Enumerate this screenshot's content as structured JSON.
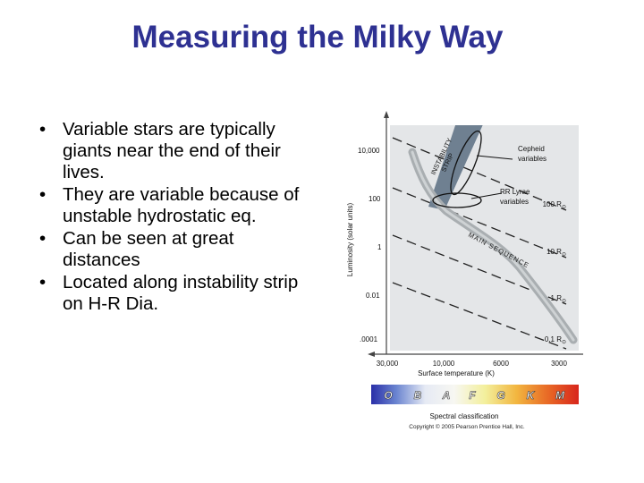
{
  "slide": {
    "title": "Measuring the Milky Way",
    "bullets": [
      "Variable stars are typically giants near the end of their lives.",
      "They are variable because of unstable hydrostatic eq.",
      "Can be seen at great distances",
      "Located along instability strip on H-R Dia."
    ]
  },
  "figure": {
    "y_axis_label": "Luminosity (solar units)",
    "x_axis_label": "Surface temperature (K)",
    "y_ticks": [
      "10,000",
      "100",
      "1",
      "0.01",
      ".0001"
    ],
    "x_ticks": [
      "30,000",
      "10,000",
      "6000",
      "3000"
    ],
    "radius_labels": [
      "100 R",
      "10 R",
      "1 R",
      "0.1 R"
    ],
    "instability_strip_label": [
      "INSTABILITY",
      "STRIP"
    ],
    "cepheid_label": [
      "Cepheid",
      "variables"
    ],
    "rr_lyrae_label": [
      "RR Lyrae",
      "variables"
    ],
    "main_sequence_label": "MAIN SEQUENCE",
    "spectral_classes": [
      "O",
      "B",
      "A",
      "F",
      "G",
      "K",
      "M"
    ],
    "spectral_caption": "Spectral classification",
    "copyright": "Copyright © 2005 Pearson Prentice Hall, Inc.",
    "colors": {
      "title": "#2e3192",
      "strip": "#6f8091",
      "main_sequence": "#a9aeb1",
      "plot_bg": "#e4e6e8"
    }
  }
}
